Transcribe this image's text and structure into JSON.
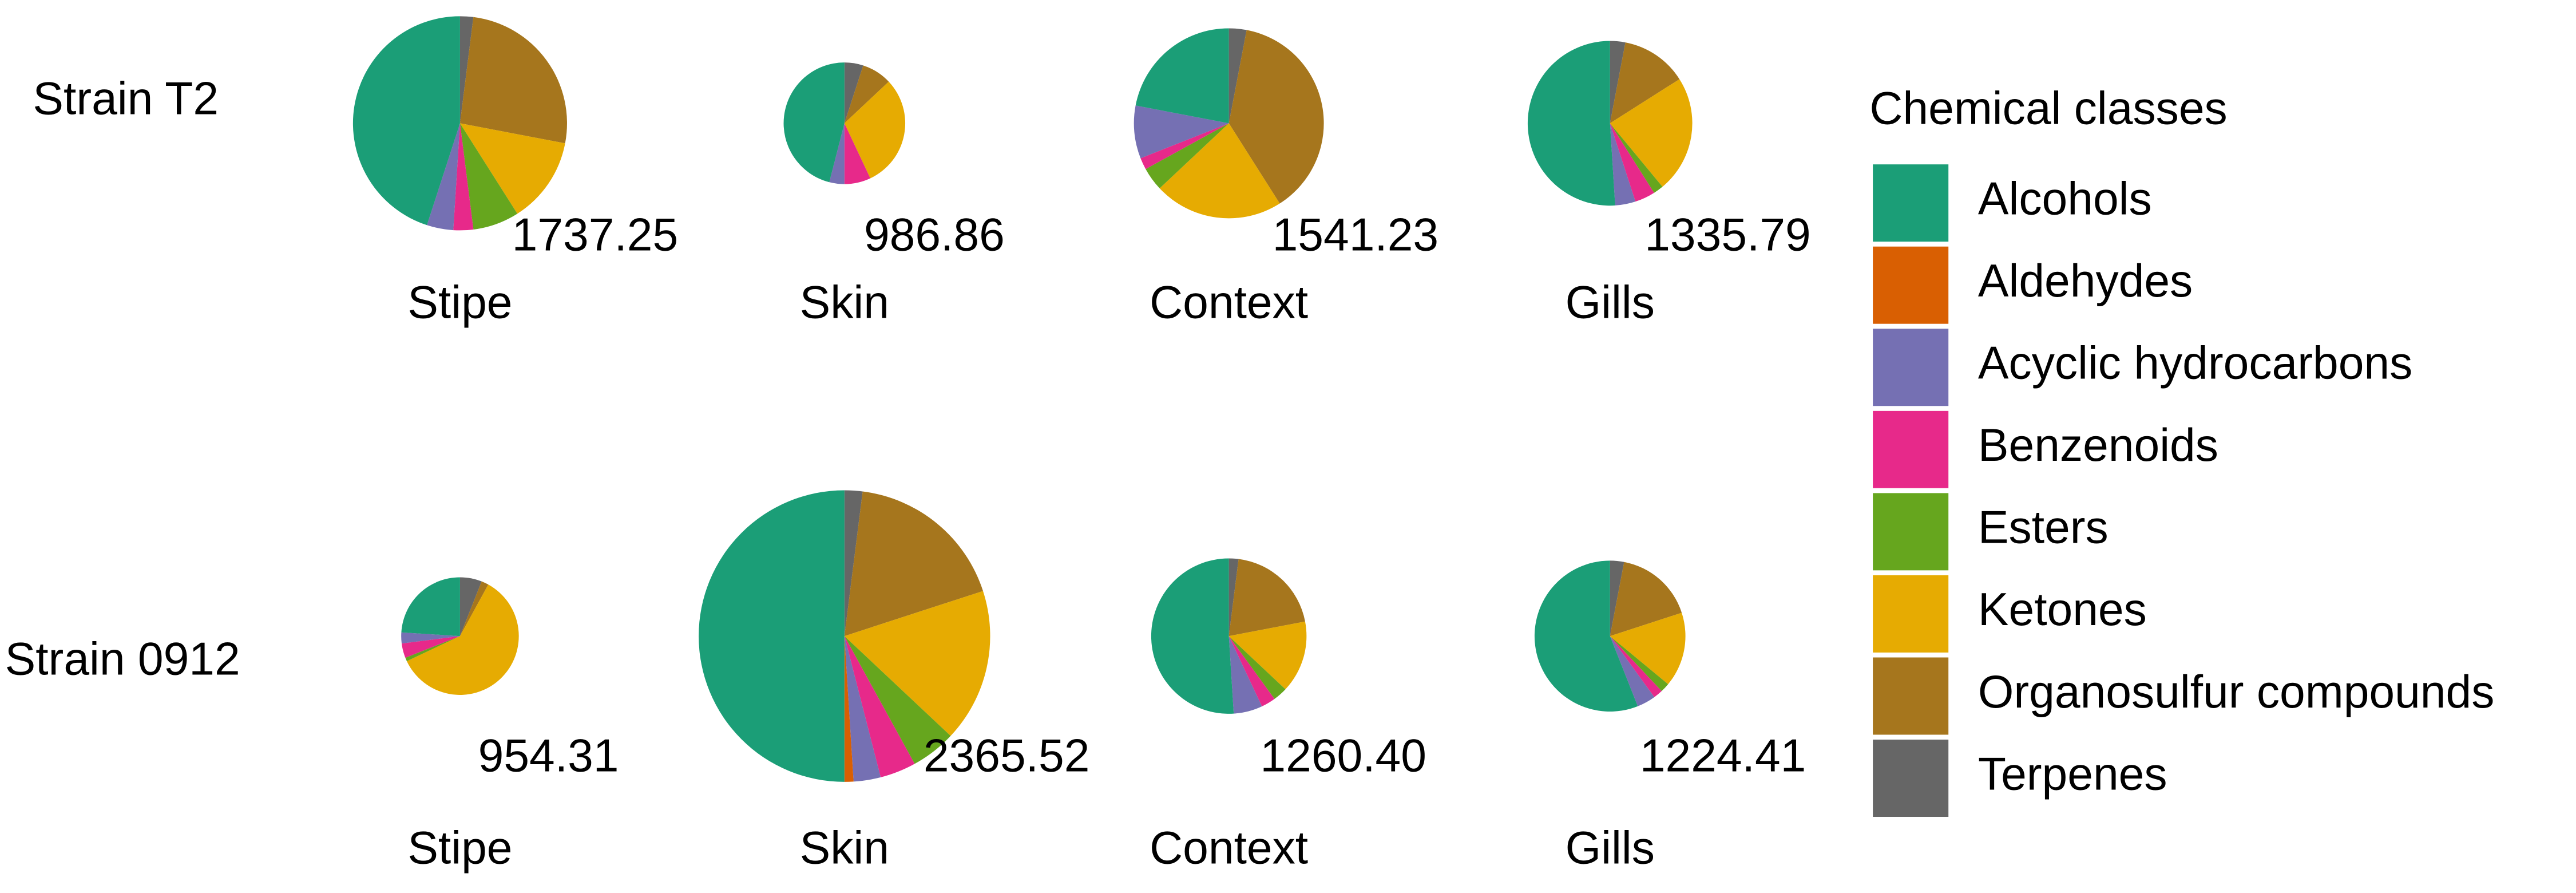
{
  "chart_data": {
    "type": "pie",
    "legend_title": "Chemical classes",
    "categories": [
      "Alcohols",
      "Aldehydes",
      "Acyclic hydrocarbons",
      "Benzenoids",
      "Esters",
      "Ketones",
      "Organosulfur compounds",
      "Terpenes"
    ],
    "colors": [
      "#1b9e77",
      "#d95f02",
      "#7570b3",
      "#e7298a",
      "#66a61e",
      "#e6ab02",
      "#a6761d",
      "#666666"
    ],
    "rows": [
      {
        "label": "Strain T2",
        "pies": [
          {
            "title": "Stipe",
            "total": 1737.25,
            "total_label": "1737.25",
            "values": [
              45,
              0,
              4,
              3,
              7,
              13,
              26,
              2
            ]
          },
          {
            "title": "Skin",
            "total": 986.86,
            "total_label": "986.86",
            "values": [
              46,
              0,
              4,
              7,
              0,
              30,
              8,
              5
            ]
          },
          {
            "title": "Context",
            "total": 1541.23,
            "total_label": "1541.23",
            "values": [
              22,
              0,
              9,
              2,
              4,
              22,
              38,
              3
            ]
          },
          {
            "title": "Gills",
            "total": 1335.79,
            "total_label": "1335.79",
            "values": [
              51,
              0,
              4,
              4,
              2,
              23,
              13,
              3
            ]
          }
        ]
      },
      {
        "label": "Strain 0912",
        "pies": [
          {
            "title": "Stipe",
            "total": 954.31,
            "total_label": "954.31",
            "values": [
              24,
              0,
              3,
              4,
              1,
              60,
              2,
              6
            ]
          },
          {
            "title": "Skin",
            "total": 2365.52,
            "total_label": "2365.52",
            "values": [
              50,
              1,
              3,
              4,
              5,
              17,
              18,
              2
            ]
          },
          {
            "title": "Context",
            "total": 1260.4,
            "total_label": "1260.40",
            "values": [
              51,
              0,
              6,
              3,
              3,
              15,
              20,
              2
            ]
          },
          {
            "title": "Gills",
            "total": 1224.41,
            "total_label": "1224.41",
            "values": [
              56,
              0,
              4,
              2,
              2,
              16,
              17,
              3
            ]
          }
        ]
      }
    ]
  }
}
